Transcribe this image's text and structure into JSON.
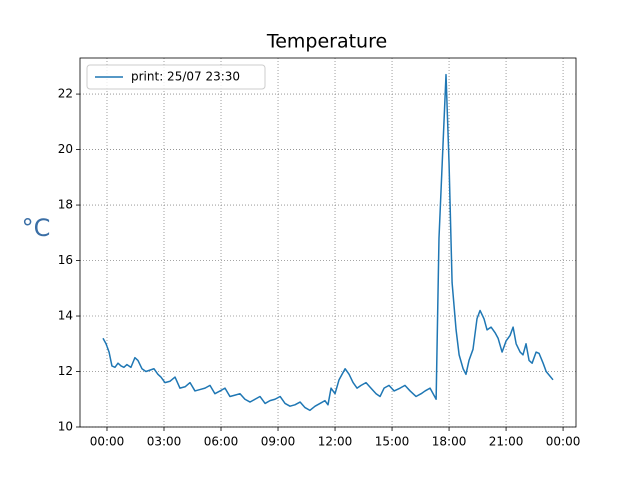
{
  "chart_data": {
    "type": "line",
    "title": "Temperature",
    "y_label": "°C",
    "x": [
      -0.21,
      -0.05,
      0.11,
      0.26,
      0.42,
      0.58,
      0.74,
      0.89,
      1.05,
      1.26,
      1.47,
      1.63,
      1.84,
      2.05,
      2.26,
      2.47,
      2.68,
      2.84,
      3.05,
      3.32,
      3.58,
      3.84,
      4.11,
      4.37,
      4.63,
      4.89,
      5.16,
      5.42,
      5.68,
      5.95,
      6.21,
      6.47,
      6.74,
      7.0,
      7.26,
      7.53,
      7.79,
      8.05,
      8.32,
      8.58,
      8.84,
      9.11,
      9.37,
      9.63,
      9.89,
      10.16,
      10.42,
      10.68,
      10.95,
      11.21,
      11.47,
      11.63,
      11.79,
      12.0,
      12.21,
      12.53,
      12.74,
      12.95,
      13.16,
      13.37,
      13.63,
      13.89,
      14.16,
      14.37,
      14.58,
      14.84,
      15.11,
      15.42,
      15.68,
      15.95,
      16.26,
      16.53,
      16.74,
      17.0,
      17.32,
      17.47,
      17.84,
      18.0,
      18.16,
      18.37,
      18.53,
      18.74,
      18.89,
      19.05,
      19.26,
      19.47,
      19.63,
      19.84,
      20.0,
      20.21,
      20.42,
      20.58,
      20.79,
      21.0,
      21.21,
      21.37,
      21.53,
      21.74,
      21.89,
      22.05,
      22.21,
      22.37,
      22.58,
      22.74,
      22.95,
      23.11,
      23.47
    ],
    "series": [
      {
        "name": "print: 25/07 23:30",
        "color": "#1f77b4",
        "values": [
          13.2,
          13.0,
          12.7,
          12.2,
          12.15,
          12.3,
          12.2,
          12.15,
          12.25,
          12.15,
          12.5,
          12.4,
          12.1,
          12.0,
          12.05,
          12.1,
          11.9,
          11.8,
          11.6,
          11.65,
          11.8,
          11.4,
          11.45,
          11.6,
          11.3,
          11.35,
          11.4,
          11.5,
          11.2,
          11.3,
          11.4,
          11.1,
          11.15,
          11.2,
          11.0,
          10.9,
          11.0,
          11.1,
          10.85,
          10.95,
          11.0,
          11.1,
          10.85,
          10.75,
          10.8,
          10.9,
          10.7,
          10.6,
          10.75,
          10.85,
          10.95,
          10.8,
          11.4,
          11.2,
          11.7,
          12.1,
          11.9,
          11.6,
          11.4,
          11.5,
          11.6,
          11.4,
          11.2,
          11.1,
          11.4,
          11.5,
          11.3,
          11.4,
          11.5,
          11.3,
          11.1,
          11.2,
          11.3,
          11.4,
          11.0,
          16.8,
          22.7,
          19.5,
          15.2,
          13.5,
          12.6,
          12.1,
          11.9,
          12.4,
          12.8,
          13.9,
          14.2,
          13.9,
          13.5,
          13.6,
          13.4,
          13.2,
          12.7,
          13.1,
          13.3,
          13.6,
          13.0,
          12.7,
          12.6,
          13.0,
          12.4,
          12.3,
          12.7,
          12.65,
          12.3,
          12.0,
          11.7
        ]
      }
    ],
    "xlim": [
      -1.42,
      24.68
    ],
    "xticks": [
      {
        "value": 0,
        "label": "00:00"
      },
      {
        "value": 3,
        "label": "03:00"
      },
      {
        "value": 6,
        "label": "06:00"
      },
      {
        "value": 9,
        "label": "09:00"
      },
      {
        "value": 12,
        "label": "12:00"
      },
      {
        "value": 15,
        "label": "15:00"
      },
      {
        "value": 18,
        "label": "18:00"
      },
      {
        "value": 21,
        "label": "21:00"
      },
      {
        "value": 24,
        "label": "00:00"
      }
    ],
    "ylim": [
      10,
      23.3
    ],
    "yticks": [
      10,
      12,
      14,
      16,
      18,
      20,
      22
    ],
    "grid": true,
    "legend": "upper-left"
  }
}
